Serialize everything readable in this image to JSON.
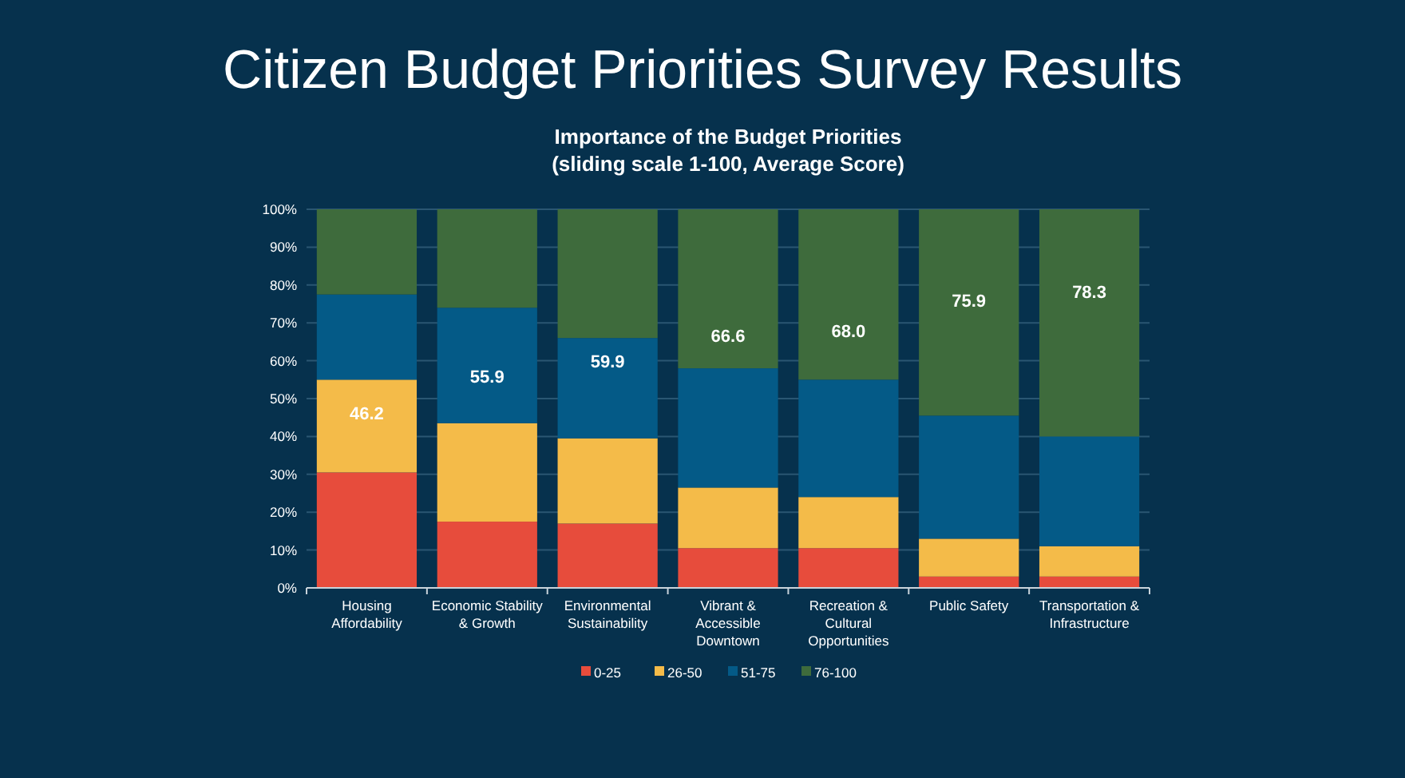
{
  "chart_data": {
    "type": "bar",
    "stacked": true,
    "title": "Citizen Budget Priorities Survey Results",
    "subtitle": "Importance of the Budget Priorities\n(sliding scale 1-100, Average Score)",
    "categories": [
      "Housing Affordability",
      "Economic Stability & Growth",
      "Environmental Sustainability",
      "Vibrant & Accessible Downtown",
      "Recreation & Cultural Opportunities",
      "Public Safety",
      "Transportation & Infrastructure"
    ],
    "series": [
      {
        "name": "0-25",
        "color": "#e74c3c",
        "values": [
          30.5,
          17.5,
          17,
          10.5,
          10.5,
          3,
          3
        ]
      },
      {
        "name": "26-50",
        "color": "#f4bb49",
        "values": [
          24.5,
          26,
          22.5,
          16,
          13.5,
          10,
          8
        ]
      },
      {
        "name": "51-75",
        "color": "#045a87",
        "values": [
          22.5,
          30.5,
          26.5,
          31.5,
          31,
          32.5,
          29
        ]
      },
      {
        "name": "76-100",
        "color": "#3e6b3c",
        "values": [
          22.5,
          26,
          34,
          42,
          45,
          54.5,
          60
        ]
      }
    ],
    "ylim": [
      0,
      100
    ],
    "yticks": [
      {
        "value": 0,
        "label": "0%"
      },
      {
        "value": 10,
        "label": "10%"
      },
      {
        "value": 20,
        "label": "20%"
      },
      {
        "value": 30,
        "label": "30%"
      },
      {
        "value": 40,
        "label": "40%"
      },
      {
        "value": 50,
        "label": "50%"
      },
      {
        "value": 60,
        "label": "60%"
      },
      {
        "value": 70,
        "label": "70%"
      },
      {
        "value": 80,
        "label": "80%"
      },
      {
        "value": 90,
        "label": "90%"
      },
      {
        "value": 100,
        "label": "100%"
      }
    ],
    "grid": "y",
    "legend": "bottom",
    "annotations": [
      "46.2",
      "55.9",
      "59.9",
      "66.6",
      "68.0",
      "75.9",
      "78.3"
    ]
  }
}
